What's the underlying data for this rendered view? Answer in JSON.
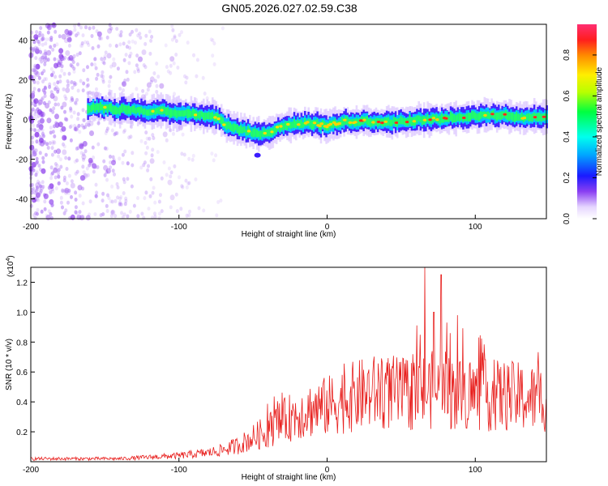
{
  "title": "GN05.2026.027.02.59.C38",
  "chart_data": [
    {
      "type": "heatmap",
      "title": "GN05.2026.027.02.59.C38",
      "xlabel": "Height of straight line (km)",
      "ylabel": "Frequency (Hz)",
      "xlim": [
        -200,
        148
      ],
      "ylim": [
        -50,
        48
      ],
      "xticks": [
        -200,
        -100,
        0,
        100
      ],
      "yticks": [
        -40,
        -20,
        0,
        20,
        40
      ],
      "colorbar": {
        "label": "Normalized spectral amplitude",
        "range": [
          0,
          0.95
        ],
        "ticks": [
          0.0,
          0.2,
          0.4,
          0.6,
          0.8
        ]
      },
      "trace": {
        "x": [
          -162,
          -150,
          -140,
          -130,
          -120,
          -110,
          -100,
          -90,
          -85,
          -80,
          -75,
          -70,
          -65,
          -60,
          -55,
          -50,
          -45,
          -40,
          -38,
          -35,
          -30,
          -20,
          -10,
          0,
          10,
          20,
          30,
          40,
          50,
          60,
          70,
          80,
          90,
          100,
          110,
          120,
          130,
          140,
          148
        ],
        "freq": [
          6,
          6,
          5,
          5,
          4,
          4,
          3,
          3,
          2,
          2,
          1,
          -2,
          -4,
          -5,
          -6,
          -7,
          -7,
          -6,
          -7,
          -4,
          -3,
          -2,
          -2,
          -3,
          -1,
          -1,
          -1,
          -1,
          -1,
          0,
          0,
          1,
          1,
          2,
          2,
          2,
          1,
          1,
          1
        ]
      },
      "noise_extent_x": [
        -200,
        -70
      ]
    },
    {
      "type": "line",
      "xlabel": "Height of straight line (km)",
      "ylabel": "SNR (10 * v/v)",
      "scale_label": "(x10",
      "scale_exp": "4",
      "xlim": [
        -200,
        148
      ],
      "ylim": [
        0,
        1.3
      ],
      "xticks": [
        -200,
        -100,
        0,
        100
      ],
      "yticks": [
        0.2,
        0.4,
        0.6,
        0.8,
        1.0,
        1.2
      ],
      "series": [
        {
          "name": "SNR",
          "color": "#e8201e",
          "x": [
            -200,
            -180,
            -160,
            -140,
            -120,
            -100,
            -90,
            -80,
            -70,
            -60,
            -50,
            -40,
            -30,
            -20,
            -10,
            0,
            10,
            20,
            30,
            40,
            50,
            60,
            70,
            80,
            90,
            100,
            110,
            120,
            130,
            140,
            148
          ],
          "values": [
            0.02,
            0.02,
            0.02,
            0.02,
            0.03,
            0.04,
            0.05,
            0.06,
            0.08,
            0.11,
            0.16,
            0.21,
            0.27,
            0.32,
            0.35,
            0.37,
            0.41,
            0.44,
            0.46,
            0.47,
            0.45,
            0.46,
            0.48,
            0.47,
            0.45,
            0.45,
            0.44,
            0.44,
            0.43,
            0.42,
            0.43
          ]
        }
      ],
      "peaks": [
        {
          "x": 66,
          "value": 1.3
        },
        {
          "x": 72,
          "value": 1.0
        },
        {
          "x": 77,
          "value": 1.25
        },
        {
          "x": 88,
          "value": 0.98
        },
        {
          "x": 83,
          "value": 0.86
        }
      ]
    }
  ]
}
